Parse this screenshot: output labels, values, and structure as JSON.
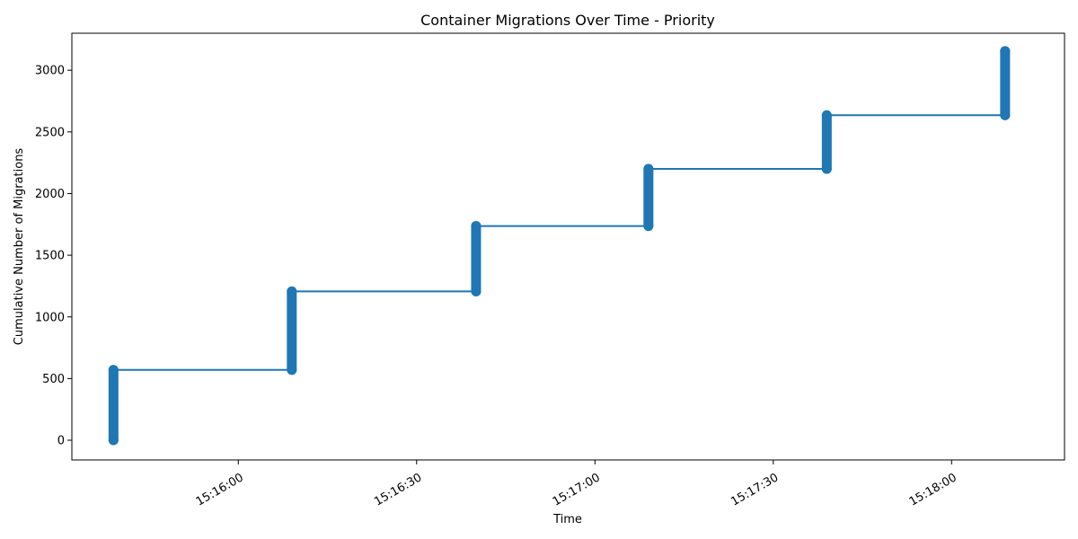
{
  "chart_data": {
    "type": "line",
    "title": "Container Migrations Over Time - Priority",
    "xlabel": "Time",
    "ylabel": "Cumulative Number of Migrations",
    "x_axis": {
      "kind": "time",
      "range": [
        "15:15:32",
        "15:18:19"
      ],
      "ticks": [
        "15:16:00",
        "15:16:30",
        "15:17:00",
        "15:17:30",
        "15:18:00"
      ]
    },
    "y_axis": {
      "range": [
        -160,
        3300
      ],
      "ticks": [
        0,
        500,
        1000,
        1500,
        2000,
        2500,
        3000
      ]
    },
    "grid": false,
    "legend": "none",
    "series": [
      {
        "color": "#1f77b4",
        "marker": "circle",
        "points": [
          {
            "time": "15:15:39",
            "y": 0
          },
          {
            "time": "15:15:39",
            "y": 570
          },
          {
            "time": "15:16:09",
            "y": 570
          },
          {
            "time": "15:16:09",
            "y": 1207
          },
          {
            "time": "15:16:40",
            "y": 1207
          },
          {
            "time": "15:16:40",
            "y": 1737
          },
          {
            "time": "15:17:09",
            "y": 1737
          },
          {
            "time": "15:17:09",
            "y": 2200
          },
          {
            "time": "15:17:39",
            "y": 2200
          },
          {
            "time": "15:17:39",
            "y": 2635
          },
          {
            "time": "15:18:09",
            "y": 2635
          },
          {
            "time": "15:18:09",
            "y": 3155
          }
        ]
      }
    ]
  }
}
